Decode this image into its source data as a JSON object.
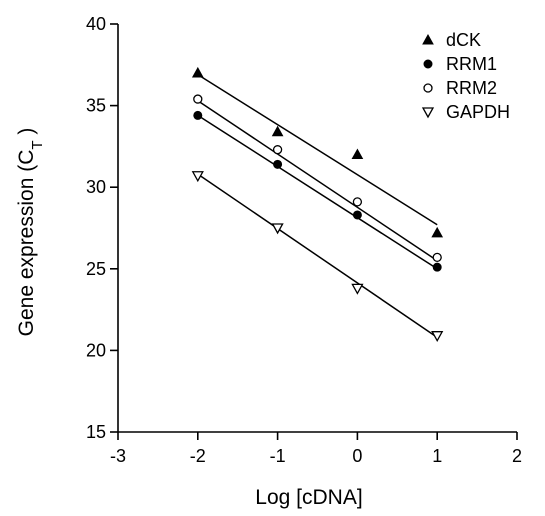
{
  "chart_data": {
    "type": "scatter",
    "x_label": "Log [cDNA]",
    "y_label_main": "Gene expression (C",
    "y_label_sub": "T",
    "y_label_close": " )",
    "xlim": [
      -3,
      2
    ],
    "ylim": [
      15,
      40
    ],
    "x_ticks": [
      -3,
      -2,
      -1,
      0,
      1,
      2
    ],
    "y_ticks": [
      15,
      20,
      25,
      30,
      35,
      40
    ],
    "x_tick_labels": [
      "-3",
      "-2",
      "-1",
      "0",
      "1",
      "2"
    ],
    "y_tick_labels": [
      "15",
      "20",
      "25",
      "30",
      "35",
      "40"
    ],
    "grid": false,
    "legend_position": "top-right",
    "series": [
      {
        "name": "dCK",
        "marker": "triangle-up-filled",
        "x": [
          -2,
          -1,
          0,
          1
        ],
        "y": [
          37.0,
          33.4,
          32.0,
          27.2
        ],
        "fit": {
          "x": [
            -2,
            1
          ],
          "y": [
            36.9,
            27.7
          ]
        }
      },
      {
        "name": "RRM1",
        "marker": "circle-filled",
        "x": [
          -2,
          -1,
          0,
          1
        ],
        "y": [
          34.4,
          31.4,
          28.3,
          25.1
        ],
        "fit": {
          "x": [
            -2,
            1
          ],
          "y": [
            34.4,
            25.0
          ]
        }
      },
      {
        "name": "RRM2",
        "marker": "circle-open",
        "x": [
          -2,
          -1,
          0,
          1
        ],
        "y": [
          35.4,
          32.3,
          29.1,
          25.7
        ],
        "fit": {
          "x": [
            -2,
            1
          ],
          "y": [
            35.3,
            25.5
          ]
        }
      },
      {
        "name": "GAPDH",
        "marker": "triangle-down-open",
        "x": [
          -2,
          -1,
          0,
          1
        ],
        "y": [
          30.7,
          27.5,
          23.8,
          20.9
        ],
        "fit": {
          "x": [
            -2,
            1
          ],
          "y": [
            30.8,
            20.8
          ]
        }
      }
    ]
  }
}
